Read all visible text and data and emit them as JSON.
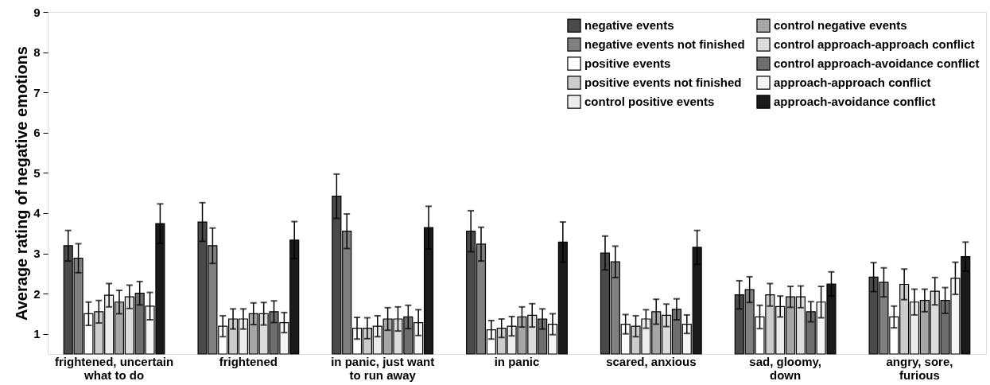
{
  "chart_data": {
    "type": "bar",
    "ylabel": "Average rating of negative emotions",
    "categories": [
      "frightened, uncertain\nwhat to do",
      "frightened",
      "in panic, just want\nto run away",
      "in panic",
      "scared, anxious",
      "sad, gloomy,\ndown",
      "angry, sore,\nfurious"
    ],
    "ylim": [
      0.5,
      9
    ],
    "yticks": [
      1,
      2,
      3,
      4,
      5,
      6,
      7,
      8,
      9
    ],
    "legend": "top right",
    "grid": false,
    "series": [
      {
        "name": "negative events",
        "color": "#4a4a4a",
        "values": [
          3.19,
          3.78,
          4.42,
          3.55,
          3.01,
          1.97,
          2.41
        ],
        "errors": [
          0.38,
          0.48,
          0.55,
          0.51,
          0.42,
          0.35,
          0.36
        ]
      },
      {
        "name": "negative events not finished",
        "color": "#808080",
        "values": [
          2.88,
          3.19,
          3.55,
          3.23,
          2.79,
          2.1,
          2.28
        ],
        "errors": [
          0.36,
          0.44,
          0.43,
          0.42,
          0.39,
          0.32,
          0.36
        ]
      },
      {
        "name": "positive events",
        "color": "#ffffff",
        "values": [
          1.5,
          1.19,
          1.14,
          1.1,
          1.24,
          1.42,
          1.42
        ],
        "errors": [
          0.29,
          0.26,
          0.27,
          0.23,
          0.24,
          0.29,
          0.27
        ]
      },
      {
        "name": "positive events not finished",
        "color": "#cccccc",
        "values": [
          1.55,
          1.37,
          1.14,
          1.14,
          1.19,
          1.97,
          2.23
        ],
        "errors": [
          0.28,
          0.25,
          0.26,
          0.23,
          0.26,
          0.28,
          0.38
        ]
      },
      {
        "name": "control positive events",
        "color": "#ececec",
        "values": [
          1.96,
          1.37,
          1.19,
          1.19,
          1.37,
          1.68,
          1.79
        ],
        "errors": [
          0.29,
          0.25,
          0.26,
          0.24,
          0.23,
          0.26,
          0.32
        ]
      },
      {
        "name": "control negative events",
        "color": "#a6a6a6",
        "values": [
          1.79,
          1.5,
          1.37,
          1.42,
          1.55,
          1.92,
          1.83
        ],
        "errors": [
          0.29,
          0.27,
          0.28,
          0.25,
          0.31,
          0.26,
          0.28
        ]
      },
      {
        "name": "control approach-approach conflict",
        "color": "#dcdcdc",
        "values": [
          1.92,
          1.5,
          1.37,
          1.46,
          1.46,
          1.92,
          2.06
        ],
        "errors": [
          0.29,
          0.28,
          0.3,
          0.29,
          0.28,
          0.27,
          0.34
        ]
      },
      {
        "name": "control approach-avoidance conflict",
        "color": "#6e6e6e",
        "values": [
          2.01,
          1.55,
          1.42,
          1.37,
          1.61,
          1.55,
          1.83
        ],
        "errors": [
          0.29,
          0.27,
          0.29,
          0.25,
          0.26,
          0.25,
          0.32
        ]
      },
      {
        "name": "approach-approach conflict",
        "color": "#f5f5f5",
        "values": [
          1.69,
          1.28,
          1.28,
          1.24,
          1.24,
          1.79,
          2.38
        ],
        "errors": [
          0.34,
          0.25,
          0.32,
          0.26,
          0.23,
          0.39,
          0.4
        ]
      },
      {
        "name": "approach-avoidance conflict",
        "color": "#1a1a1a",
        "values": [
          3.74,
          3.33,
          3.64,
          3.28,
          3.15,
          2.24,
          2.92
        ],
        "errors": [
          0.49,
          0.46,
          0.53,
          0.5,
          0.42,
          0.3,
          0.36
        ]
      }
    ]
  }
}
